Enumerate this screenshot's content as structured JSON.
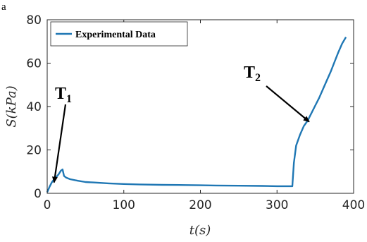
{
  "panel_label": "a",
  "chart_data": {
    "type": "line",
    "xlabel": "t(s)",
    "ylabel": "S(kPa)",
    "xlim": [
      0,
      400
    ],
    "ylim": [
      0,
      80
    ],
    "x_ticks": [
      0,
      100,
      200,
      300,
      400
    ],
    "y_ticks": [
      0,
      20,
      40,
      60,
      80
    ],
    "grid": false,
    "legend_position": "top-left",
    "series": [
      {
        "name": "Experimental Data",
        "color": "#1f77b4",
        "x": [
          0,
          3,
          6,
          9,
          12,
          15,
          18,
          20,
          22,
          25,
          30,
          40,
          50,
          60,
          80,
          100,
          120,
          150,
          180,
          200,
          220,
          250,
          280,
          300,
          310,
          318,
          320,
          322,
          325,
          330,
          335,
          340,
          345,
          350,
          355,
          360,
          365,
          370,
          375,
          380,
          385,
          390
        ],
        "y": [
          0.5,
          3,
          5,
          6.5,
          7.5,
          8.8,
          10.5,
          11,
          8,
          7.2,
          6.5,
          5.8,
          5.2,
          5,
          4.6,
          4.3,
          4.1,
          3.9,
          3.8,
          3.7,
          3.6,
          3.5,
          3.4,
          3.3,
          3.3,
          3.3,
          3.3,
          14,
          22,
          27,
          31,
          33.5,
          37,
          40.5,
          44,
          48,
          52,
          56,
          60.5,
          65,
          69,
          72
        ]
      }
    ],
    "annotations": [
      {
        "main": "T",
        "sub": "1",
        "target_x": 9,
        "target_y": 5
      },
      {
        "main": "T",
        "sub": "2",
        "target_x": 342,
        "target_y": 33
      }
    ]
  }
}
